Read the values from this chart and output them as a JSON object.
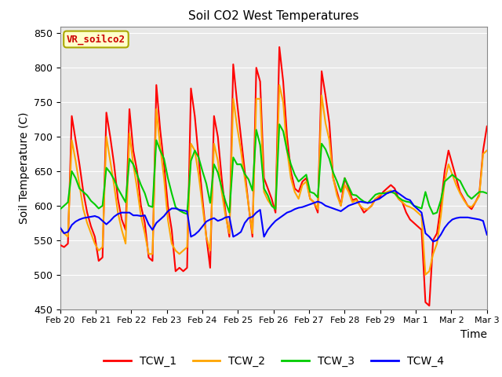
{
  "title": "Soil CO2 West Temperatures",
  "ylabel": "Soil Temperature (C)",
  "xlabel": "Time",
  "annotation": "VR_soilco2",
  "ylim": [
    450,
    860
  ],
  "yticks": [
    450,
    500,
    550,
    600,
    650,
    700,
    750,
    800,
    850
  ],
  "bg_color": "#e8e8e8",
  "line_colors": {
    "TCW_1": "#ff0000",
    "TCW_2": "#ffa500",
    "TCW_3": "#00cc00",
    "TCW_4": "#0000ff"
  },
  "x_tick_labels": [
    "Feb 20",
    "Feb 21",
    "Feb 22",
    "Feb 23",
    "Feb 24",
    "Feb 25",
    "Feb 26",
    "Feb 27",
    "Feb 28",
    "Feb 29",
    "Mar 1",
    "Mar 2",
    "Mar 3"
  ],
  "TCW_1": [
    543,
    540,
    545,
    730,
    695,
    660,
    620,
    590,
    570,
    555,
    520,
    525,
    735,
    700,
    660,
    610,
    580,
    565,
    740,
    680,
    650,
    600,
    575,
    525,
    520,
    775,
    710,
    660,
    600,
    565,
    505,
    510,
    505,
    510,
    770,
    730,
    670,
    610,
    555,
    510,
    730,
    700,
    640,
    590,
    555,
    805,
    750,
    700,
    650,
    600,
    555,
    800,
    780,
    640,
    625,
    610,
    590,
    830,
    780,
    700,
    650,
    625,
    620,
    635,
    640,
    610,
    605,
    590,
    795,
    760,
    720,
    640,
    620,
    600,
    640,
    625,
    608,
    610,
    600,
    590,
    595,
    600,
    610,
    612,
    620,
    625,
    630,
    625,
    610,
    605,
    590,
    580,
    575,
    570,
    565,
    460,
    455,
    550,
    560,
    600,
    650,
    680,
    660,
    640,
    620,
    610,
    600,
    595,
    605,
    616,
    680,
    715
  ],
  "TCW_2": [
    565,
    560,
    555,
    695,
    665,
    630,
    595,
    575,
    560,
    545,
    535,
    540,
    700,
    665,
    630,
    590,
    565,
    545,
    705,
    660,
    625,
    585,
    560,
    530,
    530,
    740,
    685,
    640,
    580,
    545,
    535,
    530,
    535,
    540,
    690,
    680,
    645,
    600,
    555,
    535,
    690,
    665,
    620,
    585,
    560,
    755,
    715,
    680,
    640,
    600,
    560,
    755,
    755,
    620,
    608,
    600,
    595,
    775,
    750,
    680,
    640,
    620,
    610,
    630,
    635,
    610,
    605,
    595,
    760,
    720,
    695,
    640,
    615,
    600,
    630,
    620,
    605,
    608,
    600,
    595,
    595,
    600,
    610,
    615,
    618,
    620,
    622,
    618,
    610,
    605,
    600,
    598,
    595,
    590,
    585,
    500,
    505,
    530,
    545,
    585,
    635,
    660,
    645,
    630,
    618,
    608,
    600,
    598,
    605,
    614,
    675,
    680
  ],
  "TCW_3": [
    595,
    600,
    605,
    650,
    640,
    625,
    620,
    615,
    607,
    602,
    596,
    600,
    655,
    648,
    638,
    625,
    615,
    605,
    668,
    660,
    645,
    630,
    618,
    600,
    598,
    695,
    680,
    668,
    640,
    618,
    598,
    593,
    590,
    588,
    665,
    680,
    670,
    650,
    632,
    604,
    660,
    648,
    626,
    606,
    590,
    670,
    660,
    660,
    646,
    638,
    622,
    710,
    688,
    625,
    615,
    600,
    595,
    718,
    708,
    680,
    660,
    645,
    635,
    640,
    645,
    620,
    618,
    612,
    690,
    682,
    668,
    648,
    635,
    620,
    640,
    628,
    616,
    615,
    610,
    606,
    604,
    610,
    616,
    618,
    618,
    618,
    620,
    618,
    612,
    608,
    606,
    605,
    600,
    598,
    596,
    620,
    600,
    588,
    590,
    608,
    635,
    640,
    645,
    640,
    636,
    625,
    615,
    610,
    615,
    620,
    620,
    618
  ],
  "TCW_4": [
    568,
    560,
    562,
    572,
    577,
    580,
    582,
    583,
    584,
    585,
    583,
    578,
    573,
    578,
    584,
    588,
    590,
    590,
    590,
    586,
    586,
    585,
    586,
    573,
    565,
    575,
    580,
    585,
    592,
    596,
    596,
    594,
    593,
    592,
    555,
    558,
    563,
    570,
    577,
    580,
    582,
    578,
    580,
    583,
    584,
    555,
    558,
    562,
    575,
    582,
    584,
    590,
    594,
    555,
    565,
    572,
    578,
    582,
    586,
    590,
    592,
    595,
    597,
    598,
    600,
    602,
    604,
    606,
    604,
    600,
    598,
    596,
    594,
    592,
    596,
    600,
    602,
    604,
    606,
    605,
    604,
    605,
    608,
    610,
    614,
    618,
    620,
    622,
    618,
    614,
    610,
    608,
    600,
    595,
    590,
    560,
    555,
    548,
    550,
    558,
    568,
    575,
    580,
    582,
    583,
    583,
    583,
    582,
    581,
    580,
    578,
    558
  ]
}
